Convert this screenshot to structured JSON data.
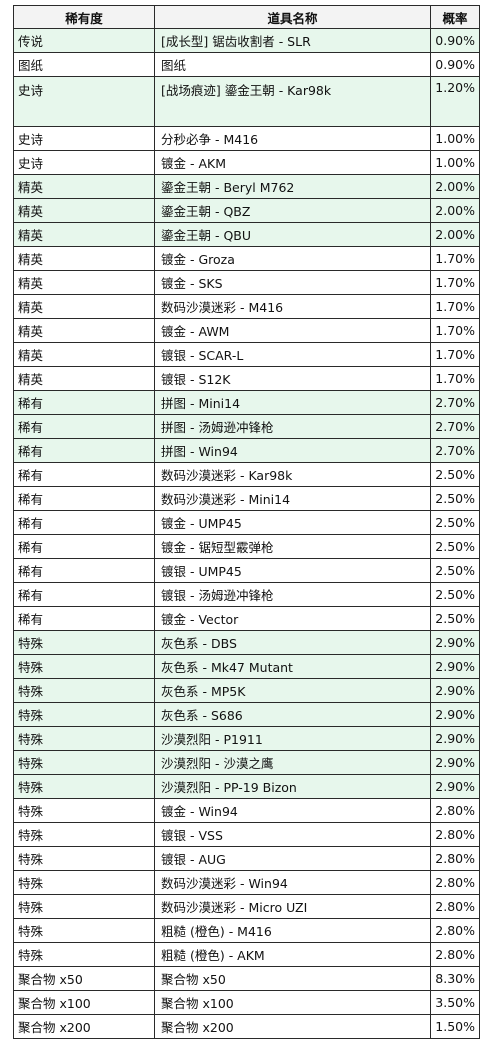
{
  "table": {
    "headers": [
      "稀有度",
      "道具名称",
      "概率"
    ],
    "rows": [
      {
        "rarity": "传说",
        "name": "[成长型] 锯齿收割者 - SLR",
        "rate": "0.90%",
        "highlight": true
      },
      {
        "rarity": "图纸",
        "name": "图纸",
        "rate": "0.90%",
        "highlight": false
      },
      {
        "rarity": "史诗",
        "name": "[战场痕迹] 鎏金王朝 - Kar98k",
        "rate": "1.20%",
        "highlight": true,
        "tall": true
      },
      {
        "rarity": "史诗",
        "name": "分秒必争 - M416",
        "rate": "1.00%",
        "highlight": false
      },
      {
        "rarity": "史诗",
        "name": "镀金 - AKM",
        "rate": "1.00%",
        "highlight": false
      },
      {
        "rarity": "精英",
        "name": "鎏金王朝 - Beryl M762",
        "rate": "2.00%",
        "highlight": true
      },
      {
        "rarity": "精英",
        "name": "鎏金王朝 - QBZ",
        "rate": "2.00%",
        "highlight": true
      },
      {
        "rarity": "精英",
        "name": "鎏金王朝 - QBU",
        "rate": "2.00%",
        "highlight": true
      },
      {
        "rarity": "精英",
        "name": "镀金 - Groza",
        "rate": "1.70%",
        "highlight": false
      },
      {
        "rarity": "精英",
        "name": "镀金 - SKS",
        "rate": "1.70%",
        "highlight": false
      },
      {
        "rarity": "精英",
        "name": "数码沙漠迷彩 - M416",
        "rate": "1.70%",
        "highlight": false
      },
      {
        "rarity": "精英",
        "name": "镀金 - AWM",
        "rate": "1.70%",
        "highlight": false
      },
      {
        "rarity": "精英",
        "name": "镀银 - SCAR-L",
        "rate": "1.70%",
        "highlight": false
      },
      {
        "rarity": "精英",
        "name": "镀银 - S12K",
        "rate": "1.70%",
        "highlight": false
      },
      {
        "rarity": "稀有",
        "name": "拼图 - Mini14",
        "rate": "2.70%",
        "highlight": true
      },
      {
        "rarity": "稀有",
        "name": "拼图 - 汤姆逊冲锋枪",
        "rate": "2.70%",
        "highlight": true
      },
      {
        "rarity": "稀有",
        "name": "拼图 - Win94",
        "rate": "2.70%",
        "highlight": true
      },
      {
        "rarity": "稀有",
        "name": "数码沙漠迷彩 - Kar98k",
        "rate": "2.50%",
        "highlight": false
      },
      {
        "rarity": "稀有",
        "name": "数码沙漠迷彩 - Mini14",
        "rate": "2.50%",
        "highlight": false
      },
      {
        "rarity": "稀有",
        "name": "镀金 - UMP45",
        "rate": "2.50%",
        "highlight": false
      },
      {
        "rarity": "稀有",
        "name": "镀金 - 锯短型霰弹枪",
        "rate": "2.50%",
        "highlight": false
      },
      {
        "rarity": "稀有",
        "name": "镀银 - UMP45",
        "rate": "2.50%",
        "highlight": false
      },
      {
        "rarity": "稀有",
        "name": "镀银 - 汤姆逊冲锋枪",
        "rate": "2.50%",
        "highlight": false
      },
      {
        "rarity": "稀有",
        "name": "镀金 - Vector",
        "rate": "2.50%",
        "highlight": false
      },
      {
        "rarity": "特殊",
        "name": "灰色系 - DBS",
        "rate": "2.90%",
        "highlight": true
      },
      {
        "rarity": "特殊",
        "name": "灰色系 - Mk47 Mutant",
        "rate": "2.90%",
        "highlight": true
      },
      {
        "rarity": "特殊",
        "name": "灰色系 - MP5K",
        "rate": "2.90%",
        "highlight": true
      },
      {
        "rarity": "特殊",
        "name": "灰色系 - S686",
        "rate": "2.90%",
        "highlight": true
      },
      {
        "rarity": "特殊",
        "name": "沙漠烈阳 - P1911",
        "rate": "2.90%",
        "highlight": true
      },
      {
        "rarity": "特殊",
        "name": "沙漠烈阳 - 沙漠之鹰",
        "rate": "2.90%",
        "highlight": true
      },
      {
        "rarity": "特殊",
        "name": "沙漠烈阳 - PP-19 Bizon",
        "rate": "2.90%",
        "highlight": true
      },
      {
        "rarity": "特殊",
        "name": "镀金 - Win94",
        "rate": "2.80%",
        "highlight": false
      },
      {
        "rarity": "特殊",
        "name": "镀银 - VSS",
        "rate": "2.80%",
        "highlight": false
      },
      {
        "rarity": "特殊",
        "name": "镀银 - AUG",
        "rate": "2.80%",
        "highlight": false
      },
      {
        "rarity": "特殊",
        "name": "数码沙漠迷彩 - Win94",
        "rate": "2.80%",
        "highlight": false
      },
      {
        "rarity": "特殊",
        "name": "数码沙漠迷彩 - Micro UZI",
        "rate": "2.80%",
        "highlight": false
      },
      {
        "rarity": "特殊",
        "name": "粗糙 (橙色) - M416",
        "rate": "2.80%",
        "highlight": false
      },
      {
        "rarity": "特殊",
        "name": "粗糙 (橙色) - AKM",
        "rate": "2.80%",
        "highlight": false
      },
      {
        "rarity": "聚合物 x50",
        "name": "聚合物 x50",
        "rate": "8.30%",
        "highlight": false
      },
      {
        "rarity": "聚合物 x100",
        "name": "聚合物 x100",
        "rate": "3.50%",
        "highlight": false
      },
      {
        "rarity": "聚合物 x200",
        "name": "聚合物 x200",
        "rate": "1.50%",
        "highlight": false
      }
    ]
  },
  "colors": {
    "highlight_row": "#e7f7ec",
    "border": "#2a2a2a"
  }
}
